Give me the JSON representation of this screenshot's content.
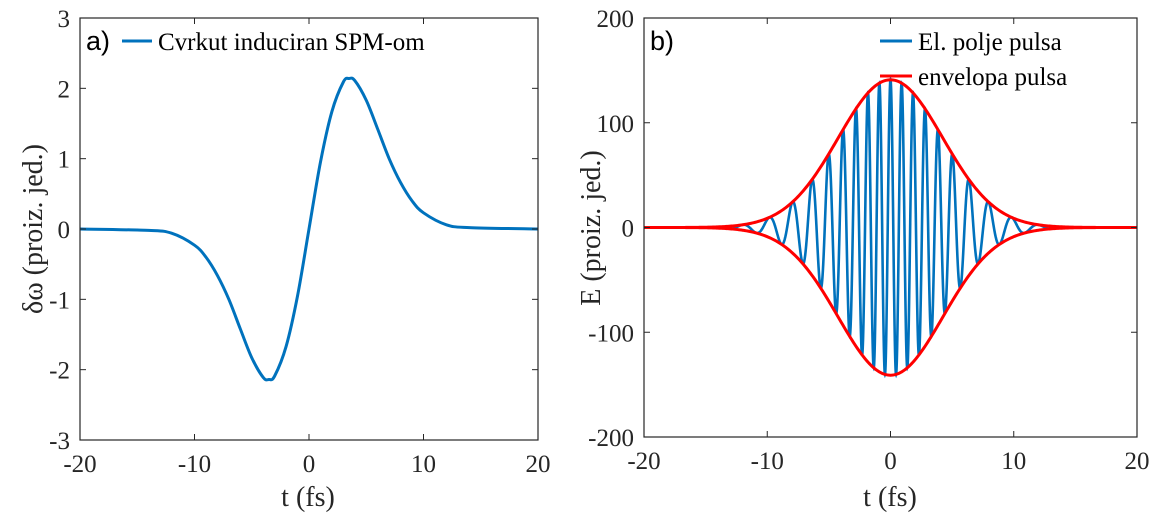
{
  "chart_data": [
    {
      "panel_label": "a)",
      "type": "line",
      "xlabel": "t (fs)",
      "ylabel": "δω (proiz. jed.)",
      "xlim": [
        -20,
        20
      ],
      "ylim": [
        -3,
        3
      ],
      "xticks": [
        "-20",
        "-10",
        "0",
        "10",
        "20"
      ],
      "yticks": [
        "3",
        "2",
        "1",
        "0",
        "-1",
        "-2",
        "-3"
      ],
      "series": [
        {
          "name": "Cvrkut induciran SPM-om",
          "color": "#0072BD",
          "x": [
            -20,
            -14,
            -12,
            -10,
            -9,
            -8,
            -7,
            -6,
            -5,
            -4,
            -3.5,
            -3,
            -2,
            -1,
            0,
            1,
            2,
            3,
            3.5,
            4,
            5,
            6,
            7,
            8,
            9,
            10,
            12,
            14,
            20
          ],
          "y": [
            0,
            -0.02,
            -0.06,
            -0.23,
            -0.4,
            -0.66,
            -1.0,
            -1.42,
            -1.83,
            -2.11,
            -2.14,
            -2.09,
            -1.67,
            -0.95,
            0,
            0.95,
            1.67,
            2.09,
            2.14,
            2.11,
            1.83,
            1.42,
            1.0,
            0.66,
            0.4,
            0.23,
            0.06,
            0.02,
            0
          ]
        }
      ],
      "legend_position": "top",
      "grid": false
    },
    {
      "panel_label": "b)",
      "type": "line",
      "xlabel": "t (fs)",
      "ylabel": "E (proiz. jed.)",
      "xlim": [
        -20,
        20
      ],
      "ylim": [
        -200,
        200
      ],
      "xticks": [
        "-20",
        "-10",
        "0",
        "10",
        "20"
      ],
      "yticks": [
        "200",
        "100",
        "0",
        "-100",
        "-200"
      ],
      "envelope": {
        "amplitude": 141,
        "width_fs": 6.0
      },
      "carrier": {
        "period_at_center_fs": 0.9,
        "period_at_edges_fs": 2.4
      },
      "series": [
        {
          "name": "El. polje pulsa",
          "color": "#0072BD"
        },
        {
          "name": "envelopa pulsa",
          "color": "#FF0000"
        }
      ],
      "legend_position": "top-right",
      "grid": false
    }
  ]
}
